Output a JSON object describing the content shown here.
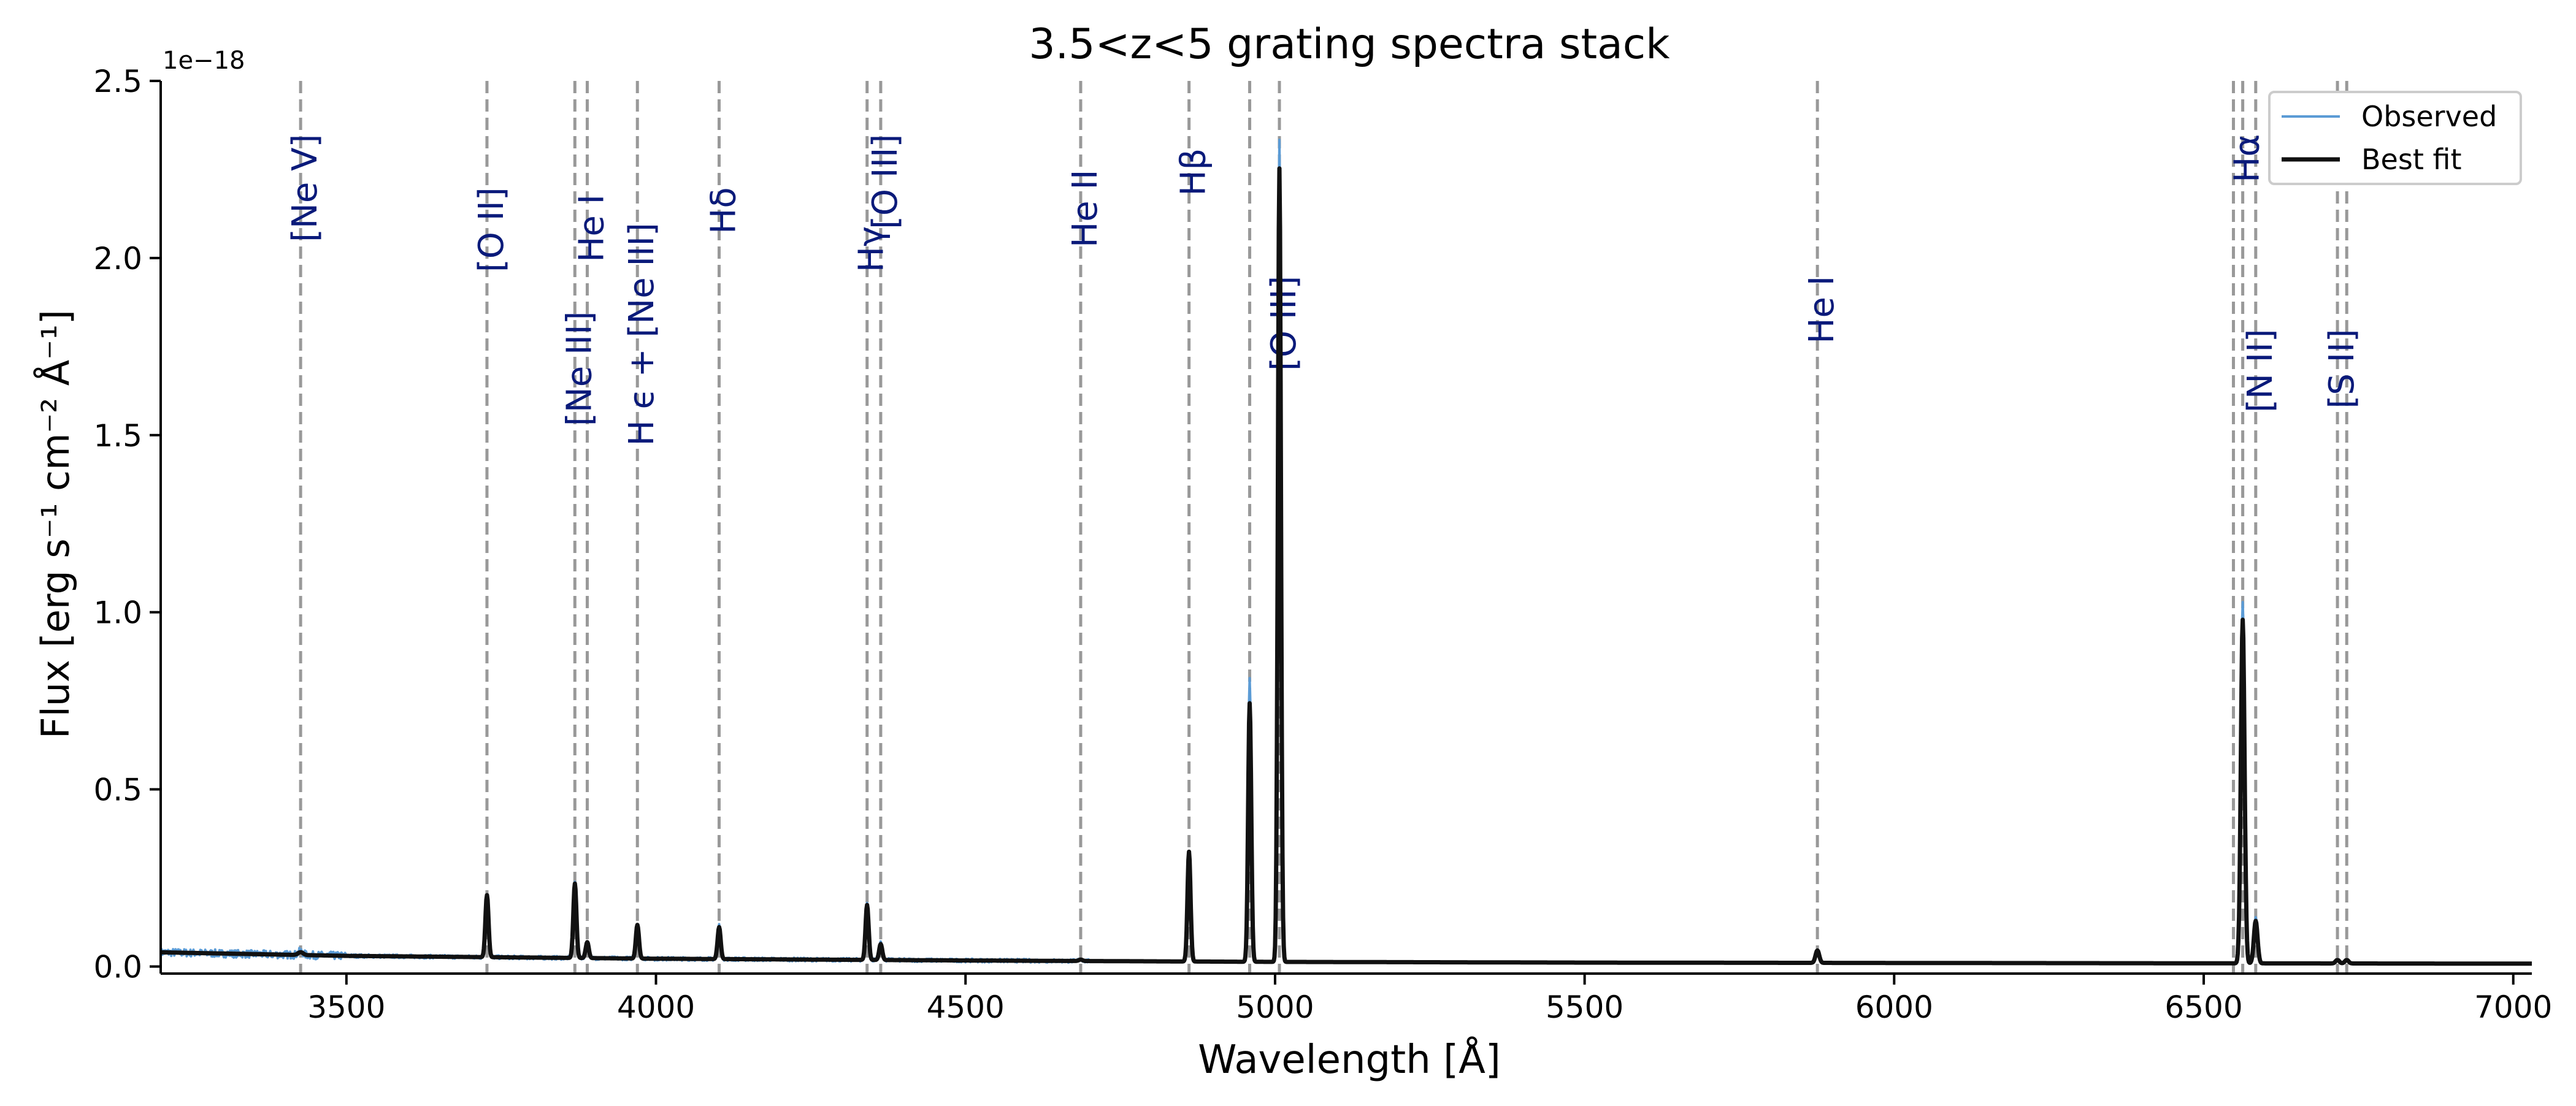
{
  "chart_data": {
    "type": "line",
    "title": "3.5<z<5 grating spectra stack",
    "xlabel": "Wavelength [Å]",
    "ylabel": "Flux  [erg s⁻¹ cm⁻² Å⁻¹]",
    "y_offset_text": "1e−18",
    "xlim": [
      3200,
      7030
    ],
    "ylim": [
      -0.02,
      2.5
    ],
    "y_scale_factor": 1e-18,
    "xticks": [
      3500,
      4000,
      4500,
      5000,
      5500,
      6000,
      6500,
      7000
    ],
    "xtick_labels": [
      "3500",
      "4000",
      "4500",
      "5000",
      "5500",
      "6000",
      "6500",
      "7000"
    ],
    "yticks": [
      0.0,
      0.5,
      1.0,
      1.5,
      2.0,
      2.5
    ],
    "ytick_labels": [
      "0.0",
      "0.5",
      "1.0",
      "1.5",
      "2.0",
      "2.5"
    ],
    "grid": false,
    "legend_position": "top-right",
    "series": [
      {
        "name": "Observed",
        "color": "#5b9bd5",
        "continuum": [
          [
            3200,
            0.04
          ],
          [
            3500,
            0.03
          ],
          [
            4000,
            0.022
          ],
          [
            4500,
            0.017
          ],
          [
            5000,
            0.013
          ],
          [
            5500,
            0.011
          ],
          [
            6000,
            0.01
          ],
          [
            6500,
            0.009
          ],
          [
            7030,
            0.008
          ]
        ],
        "lines": [
          [
            3426,
            0.01,
            4
          ],
          [
            3727,
            0.175,
            2.5
          ],
          [
            3869,
            0.21,
            2.5
          ],
          [
            3889,
            0.045,
            2.5
          ],
          [
            3970,
            0.095,
            2.5
          ],
          [
            4102,
            0.095,
            2.5
          ],
          [
            4341,
            0.16,
            2.5
          ],
          [
            4363,
            0.05,
            2.5
          ],
          [
            4686,
            0.005,
            3
          ],
          [
            4861,
            0.31,
            2.5
          ],
          [
            4959,
            0.8,
            2.5
          ],
          [
            5007,
            2.32,
            2.5
          ],
          [
            5876,
            0.035,
            3
          ],
          [
            6563,
            1.02,
            3
          ],
          [
            6584,
            0.13,
            3
          ],
          [
            6716,
            0.012,
            3
          ],
          [
            6731,
            0.01,
            3
          ]
        ],
        "noise": true
      },
      {
        "name": "Best fit",
        "color": "#111111",
        "continuum": [
          [
            3200,
            0.04
          ],
          [
            3500,
            0.03
          ],
          [
            4000,
            0.022
          ],
          [
            4500,
            0.017
          ],
          [
            5000,
            0.013
          ],
          [
            5500,
            0.011
          ],
          [
            6000,
            0.01
          ],
          [
            6500,
            0.009
          ],
          [
            7030,
            0.008
          ]
        ],
        "lines": [
          [
            3426,
            0.008,
            4
          ],
          [
            3727,
            0.175,
            2.5
          ],
          [
            3869,
            0.21,
            2.5
          ],
          [
            3889,
            0.045,
            2.5
          ],
          [
            3970,
            0.095,
            2.5
          ],
          [
            4102,
            0.09,
            2.5
          ],
          [
            4341,
            0.155,
            2.5
          ],
          [
            4363,
            0.045,
            2.5
          ],
          [
            4686,
            0.004,
            3
          ],
          [
            4861,
            0.31,
            2.5
          ],
          [
            4959,
            0.73,
            2.5
          ],
          [
            5007,
            2.24,
            2.5
          ],
          [
            5876,
            0.035,
            3
          ],
          [
            6563,
            0.97,
            3
          ],
          [
            6584,
            0.12,
            3
          ],
          [
            6716,
            0.01,
            3
          ],
          [
            6731,
            0.01,
            3
          ]
        ],
        "noise": false
      }
    ],
    "line_markers": [
      {
        "label": "[Ne V]",
        "x": 3426,
        "label_y": 2.35
      },
      {
        "label": "[O II]",
        "x": 3727,
        "label_y": 2.2
      },
      {
        "label": "[Ne III]",
        "x": 3869,
        "label_y": 1.85
      },
      {
        "label": "He I",
        "x": 3889,
        "label_y": 2.18
      },
      {
        "label": "H ϵ + [Ne III]",
        "x": 3970,
        "label_y": 2.1
      },
      {
        "label": "Hδ",
        "x": 4102,
        "label_y": 2.2
      },
      {
        "label": "Hγ",
        "x": 4341,
        "label_y": 2.09
      },
      {
        "label": "[O III]",
        "x": 4363,
        "label_y": 2.35
      },
      {
        "label": "He II",
        "x": 4686,
        "label_y": 2.25
      },
      {
        "label": "Hβ",
        "x": 4861,
        "label_y": 2.31
      },
      {
        "label": "[O III]",
        "x": 5007,
        "label_y": 1.95
      },
      {
        "label": "He I",
        "x": 5876,
        "label_y": 1.95
      },
      {
        "label": "Hα",
        "x": 6563,
        "label_y": 2.35
      },
      {
        "label": "[N II]",
        "x": 6584,
        "label_y": 1.8
      },
      {
        "label": "[S II]",
        "x": 6716,
        "label_y": 1.8
      }
    ],
    "extra_marker_lines": [
      4959,
      6548,
      6731
    ],
    "marker_label_color": "#0a1a7a",
    "marker_line_color": "#999999"
  }
}
